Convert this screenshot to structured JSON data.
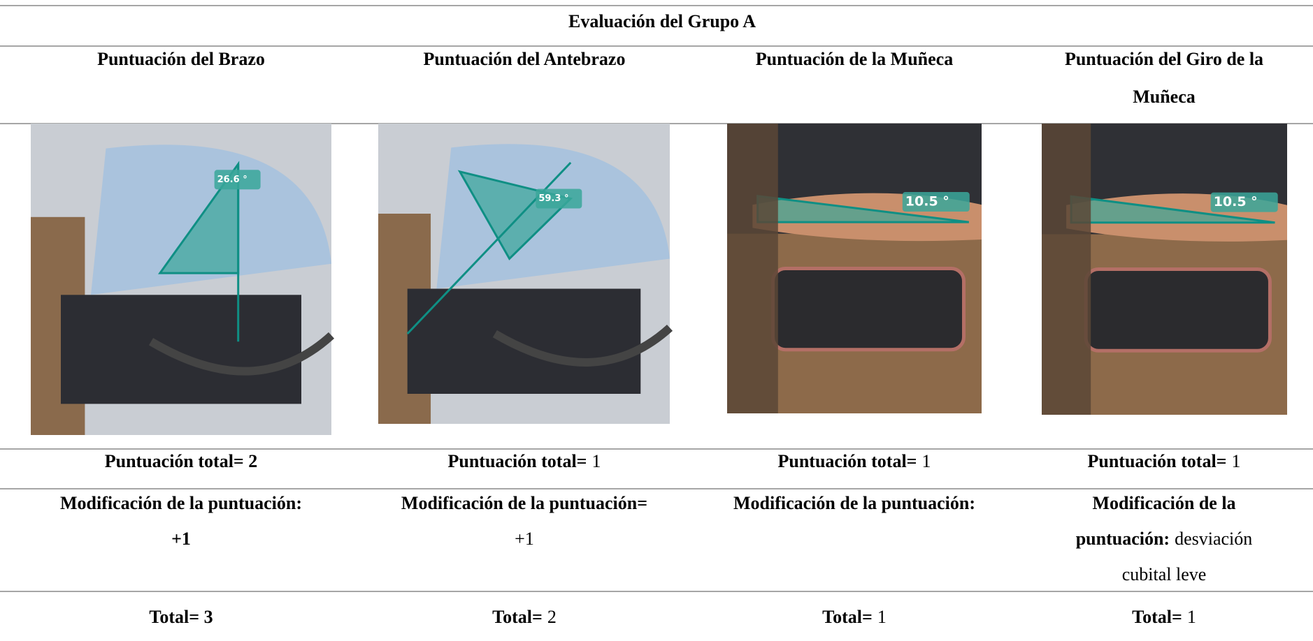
{
  "title": "Evaluación del Grupo A",
  "columns": [
    {
      "header": [
        "Puntuación del Brazo"
      ],
      "angle": "26.6 °",
      "total": [
        [
          {
            "text": "Puntuación total= 2",
            "bold": true
          }
        ]
      ],
      "modification": [
        [
          {
            "text": "Modificación de la puntuación:",
            "bold": true
          }
        ],
        [
          {
            "text": "+1",
            "bold": true
          }
        ]
      ],
      "final": [
        [
          {
            "text": "Total= 3",
            "bold": true
          }
        ]
      ]
    },
    {
      "header": [
        "Puntuación del Antebrazo"
      ],
      "angle": "59.3 °",
      "total": [
        [
          {
            "text": "Puntuación total=",
            "bold": true
          },
          {
            "text": "1",
            "bold": false
          }
        ]
      ],
      "modification": [
        [
          {
            "text": "Modificación de la puntuación=",
            "bold": true
          }
        ],
        [
          {
            "text": "+1",
            "bold": false
          }
        ]
      ],
      "final": [
        [
          {
            "text": "Total=",
            "bold": true
          },
          {
            "text": "2",
            "bold": false
          }
        ]
      ]
    },
    {
      "header": [
        "Puntuación de la Muñeca"
      ],
      "angle": "10.5 °",
      "total": [
        [
          {
            "text": "Puntuación total=",
            "bold": true
          },
          {
            "text": "1",
            "bold": false
          }
        ]
      ],
      "modification": [
        [
          {
            "text": "Modificación de la puntuación:",
            "bold": true
          }
        ]
      ],
      "final": [
        [
          {
            "text": "Total=",
            "bold": true
          },
          {
            "text": "1",
            "bold": false
          }
        ]
      ]
    },
    {
      "header": [
        "Puntuación del Giro de la",
        "Muñeca"
      ],
      "angle": "10.5 °",
      "total": [
        [
          {
            "text": "Puntuación total=",
            "bold": true
          },
          {
            "text": "1",
            "bold": false
          }
        ]
      ],
      "modification": [
        [
          {
            "text": "Modificación de la",
            "bold": true
          }
        ],
        [
          {
            "text": "puntuación:",
            "bold": true
          },
          {
            "text": "desviación",
            "bold": false
          }
        ],
        [
          {
            "text": "cubital leve",
            "bold": false
          }
        ]
      ],
      "final": [
        [
          {
            "text": "Total=",
            "bold": true
          },
          {
            "text": "1",
            "bold": false
          }
        ]
      ]
    }
  ]
}
